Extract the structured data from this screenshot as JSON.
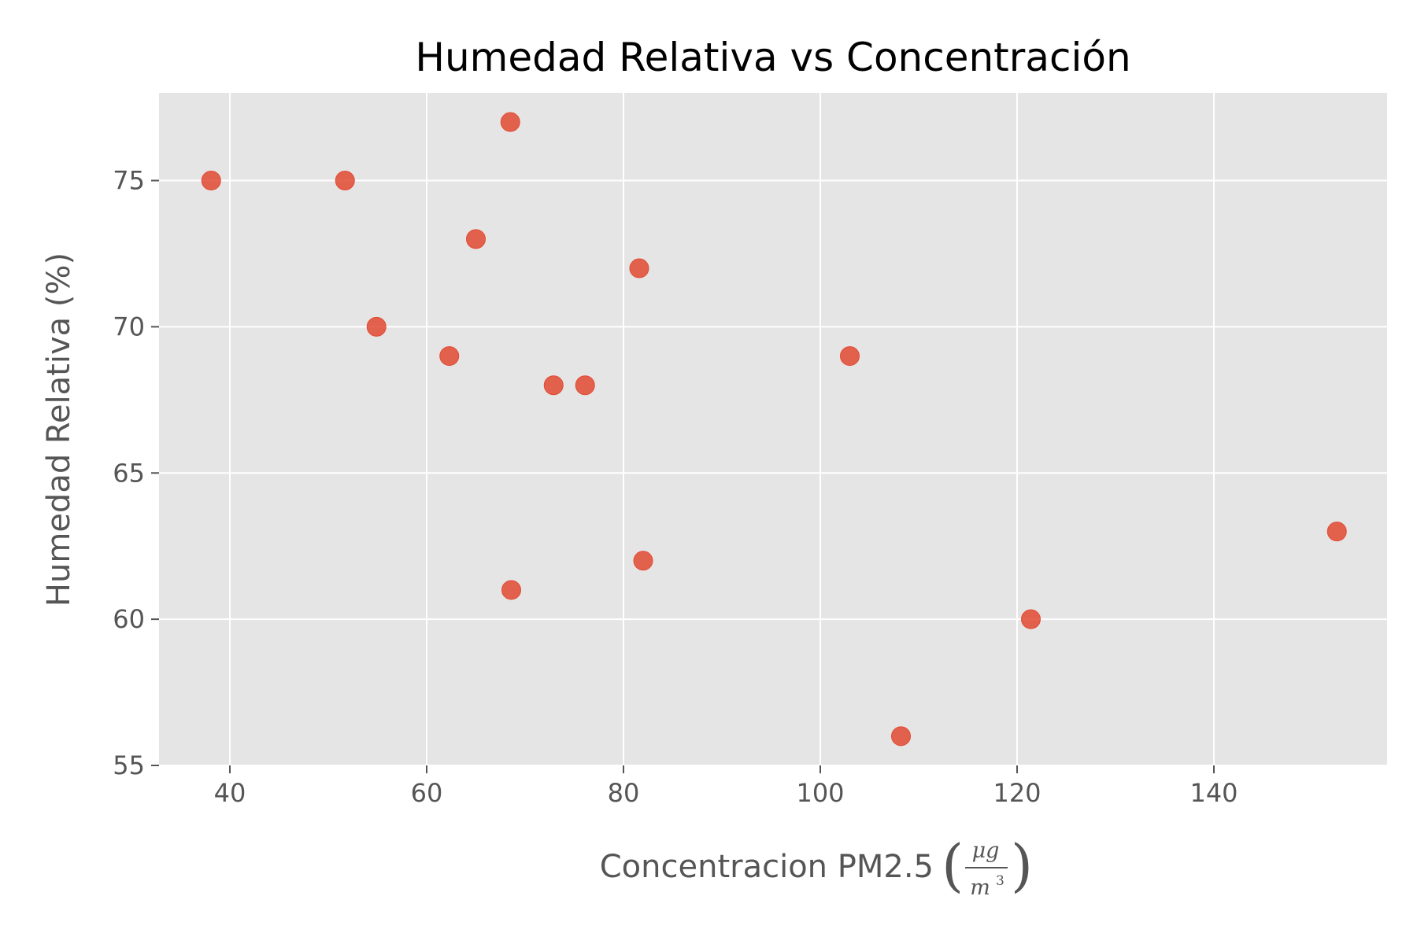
{
  "chart_data": {
    "type": "scatter",
    "title": "Humedad Relativa vs Concentración",
    "xlabel": "Concentracion PM2.5",
    "xlabel_unit": {
      "numerator": "μg",
      "denominator": "m",
      "exponent": "3"
    },
    "ylabel": "Humedad Relativa (%)",
    "xlim": [
      32.8,
      157.6
    ],
    "ylim": [
      55,
      78
    ],
    "xticks": [
      40,
      60,
      80,
      100,
      120,
      140
    ],
    "yticks": [
      55,
      60,
      65,
      70,
      75
    ],
    "xtick_labels": [
      "40",
      "60",
      "80",
      "100",
      "120",
      "140"
    ],
    "ytick_labels": [
      "55",
      "60",
      "65",
      "70",
      "75"
    ],
    "grid": true,
    "background": "#e5e5e5",
    "grid_color": "#ffffff",
    "marker_color": "#e24a33",
    "points": [
      {
        "x": 38.1,
        "y": 75
      },
      {
        "x": 51.7,
        "y": 75
      },
      {
        "x": 54.9,
        "y": 70
      },
      {
        "x": 62.3,
        "y": 69
      },
      {
        "x": 65.0,
        "y": 73
      },
      {
        "x": 68.5,
        "y": 77
      },
      {
        "x": 68.6,
        "y": 61
      },
      {
        "x": 72.9,
        "y": 68
      },
      {
        "x": 76.1,
        "y": 68
      },
      {
        "x": 81.6,
        "y": 72
      },
      {
        "x": 82.0,
        "y": 62
      },
      {
        "x": 103.0,
        "y": 69
      },
      {
        "x": 108.2,
        "y": 56
      },
      {
        "x": 121.4,
        "y": 60
      },
      {
        "x": 152.5,
        "y": 63
      }
    ]
  }
}
